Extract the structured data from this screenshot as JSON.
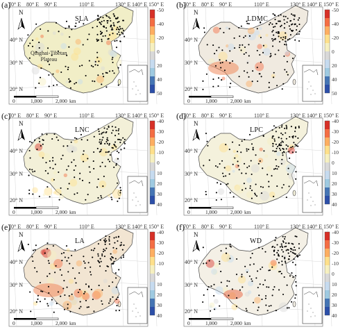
{
  "lon_labels": [
    "70° E",
    "80° E",
    "90° E",
    "110° E",
    "130° E",
    "140° E",
    "150° E"
  ],
  "lat_labels": [
    "40° N",
    "30° N",
    "20° N"
  ],
  "north_label": "N",
  "scale": {
    "zero": "0",
    "mid": "1,000",
    "end": "2,000",
    "unit": "km"
  },
  "region_label": [
    "Qinghai-Tibetan",
    "Plateau"
  ],
  "colors": {
    "red": "#d73027",
    "orange": "#f4a262",
    "pale": "#f3efc4",
    "grey": "#d9d9d9",
    "lightblue": "#abd0e6",
    "blue": "#3a5fbf"
  },
  "panels": [
    {
      "letter": "(a)",
      "name": "SLA",
      "ticks": [
        "-50",
        "-40",
        "-20",
        "0",
        "20",
        "40",
        "50"
      ]
    },
    {
      "letter": "(b)",
      "name": "LDMC",
      "ticks": [
        "-50",
        "-40",
        "-20",
        "0",
        "20",
        "40",
        "50"
      ]
    },
    {
      "letter": "(c)",
      "name": "LNC",
      "ticks": [
        "-40",
        "-30",
        "-20",
        "-10",
        "0",
        "10",
        "20",
        "30",
        "40"
      ]
    },
    {
      "letter": "(d)",
      "name": "LPC",
      "ticks": [
        "-40",
        "-30",
        "-20",
        "-10",
        "0",
        "10",
        "20",
        "30",
        "40"
      ]
    },
    {
      "letter": "(e)",
      "name": "LA",
      "ticks": [
        "-40",
        "-30",
        "-20",
        "-10",
        "0",
        "10",
        "20",
        "30",
        "40"
      ]
    },
    {
      "letter": "(f)",
      "name": "WD",
      "ticks": [
        "-40",
        "-30",
        "-20",
        "-10",
        "0",
        "10",
        "20",
        "30",
        "40"
      ]
    }
  ]
}
